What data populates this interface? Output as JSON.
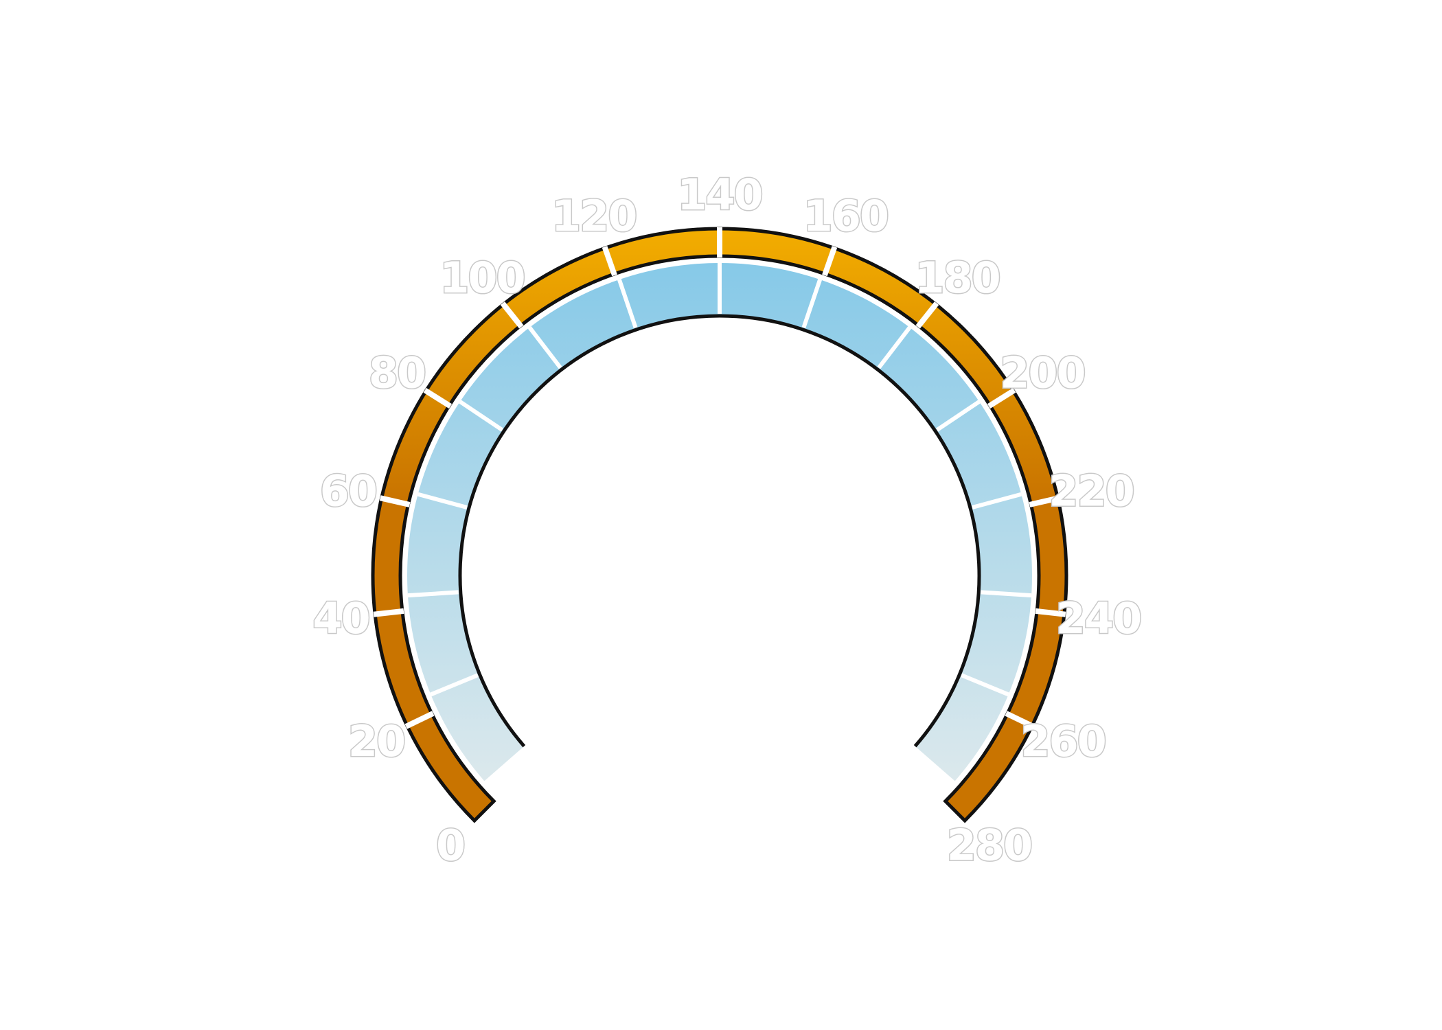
{
  "gauge": {
    "min": 0,
    "max": 280,
    "major_step": 20,
    "tick_labels": [
      "0",
      "20",
      "40",
      "60",
      "80",
      "100",
      "120",
      "140",
      "160",
      "180",
      "200",
      "220",
      "240",
      "260",
      "280"
    ],
    "inner_segment_count": 14
  },
  "colors": {
    "outer_band_top": "#f2ac00",
    "outer_band_bottom": "#c97400",
    "inner_band_top": "#86c9e8",
    "inner_band_bottom": "#dde9ec",
    "outline": "#111111",
    "divider": "#ffffff",
    "background": "#ffffff"
  }
}
